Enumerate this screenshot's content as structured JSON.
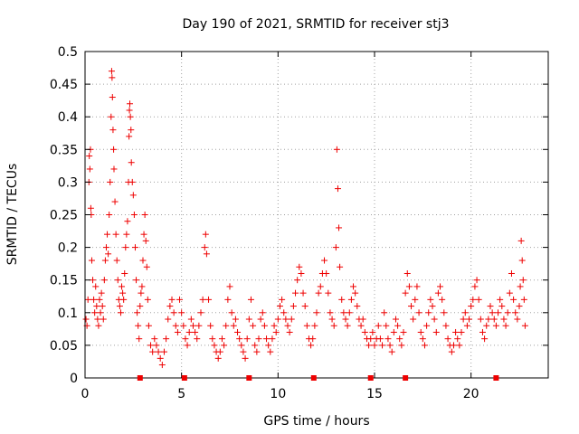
{
  "chart_data": {
    "type": "scatter",
    "title": "Day 190 of 2021, SRMTID for receiver stj3",
    "xlabel": "GPS time / hours",
    "ylabel": "SRMTID / TECUs",
    "xlim": [
      0,
      24
    ],
    "ylim": [
      0,
      0.5
    ],
    "xticks": [
      0,
      5,
      10,
      15,
      20
    ],
    "yticks": [
      0,
      0.05,
      0.1,
      0.15,
      0.2,
      0.25,
      0.3,
      0.35,
      0.4,
      0.45,
      0.5
    ],
    "grid": true,
    "marker": "+",
    "color": "#ee0000",
    "series": [
      {
        "name": "SRMTID",
        "points": [
          [
            0.05,
            0.09
          ],
          [
            0.1,
            0.08
          ],
          [
            0.15,
            0.12
          ],
          [
            0.2,
            0.3
          ],
          [
            0.22,
            0.34
          ],
          [
            0.25,
            0.32
          ],
          [
            0.28,
            0.35
          ],
          [
            0.3,
            0.26
          ],
          [
            0.32,
            0.25
          ],
          [
            0.35,
            0.18
          ],
          [
            0.4,
            0.15
          ],
          [
            0.45,
            0.12
          ],
          [
            0.5,
            0.1
          ],
          [
            0.55,
            0.14
          ],
          [
            0.6,
            0.11
          ],
          [
            0.65,
            0.09
          ],
          [
            0.7,
            0.08
          ],
          [
            0.75,
            0.12
          ],
          [
            0.8,
            0.1
          ],
          [
            0.85,
            0.13
          ],
          [
            0.9,
            0.11
          ],
          [
            0.95,
            0.09
          ],
          [
            1.0,
            0.15
          ],
          [
            1.05,
            0.18
          ],
          [
            1.1,
            0.2
          ],
          [
            1.15,
            0.22
          ],
          [
            1.2,
            0.19
          ],
          [
            1.25,
            0.25
          ],
          [
            1.3,
            0.3
          ],
          [
            1.35,
            0.4
          ],
          [
            1.38,
            0.47
          ],
          [
            1.4,
            0.46
          ],
          [
            1.42,
            0.43
          ],
          [
            1.45,
            0.38
          ],
          [
            1.48,
            0.35
          ],
          [
            1.5,
            0.32
          ],
          [
            1.55,
            0.27
          ],
          [
            1.6,
            0.22
          ],
          [
            1.65,
            0.18
          ],
          [
            1.7,
            0.15
          ],
          [
            1.75,
            0.12
          ],
          [
            1.8,
            0.11
          ],
          [
            1.85,
            0.1
          ],
          [
            1.9,
            0.14
          ],
          [
            1.95,
            0.13
          ],
          [
            2.0,
            0.12
          ],
          [
            2.05,
            0.16
          ],
          [
            2.1,
            0.2
          ],
          [
            2.15,
            0.22
          ],
          [
            2.2,
            0.24
          ],
          [
            2.25,
            0.3
          ],
          [
            2.28,
            0.37
          ],
          [
            2.3,
            0.41
          ],
          [
            2.32,
            0.42
          ],
          [
            2.35,
            0.4
          ],
          [
            2.38,
            0.38
          ],
          [
            2.4,
            0.33
          ],
          [
            2.45,
            0.3
          ],
          [
            2.5,
            0.28
          ],
          [
            2.55,
            0.25
          ],
          [
            2.6,
            0.2
          ],
          [
            2.65,
            0.15
          ],
          [
            2.7,
            0.1
          ],
          [
            2.75,
            0.08
          ],
          [
            2.8,
            0.06
          ],
          [
            2.85,
            0.11
          ],
          [
            2.9,
            0.13
          ],
          [
            2.95,
            0.14
          ],
          [
            3.0,
            0.18
          ],
          [
            3.05,
            0.22
          ],
          [
            3.1,
            0.25
          ],
          [
            3.15,
            0.21
          ],
          [
            3.2,
            0.17
          ],
          [
            3.25,
            0.12
          ],
          [
            3.3,
            0.08
          ],
          [
            3.4,
            0.05
          ],
          [
            3.5,
            0.04
          ],
          [
            3.6,
            0.06
          ],
          [
            3.7,
            0.05
          ],
          [
            3.8,
            0.04
          ],
          [
            3.9,
            0.03
          ],
          [
            4.0,
            0.02
          ],
          [
            4.1,
            0.04
          ],
          [
            4.2,
            0.06
          ],
          [
            4.3,
            0.09
          ],
          [
            4.4,
            0.11
          ],
          [
            4.5,
            0.12
          ],
          [
            4.6,
            0.1
          ],
          [
            4.7,
            0.08
          ],
          [
            4.8,
            0.07
          ],
          [
            4.9,
            0.12
          ],
          [
            5.0,
            0.1
          ],
          [
            5.1,
            0.08
          ],
          [
            5.2,
            0.06
          ],
          [
            5.3,
            0.05
          ],
          [
            5.4,
            0.07
          ],
          [
            5.5,
            0.09
          ],
          [
            5.6,
            0.08
          ],
          [
            5.7,
            0.07
          ],
          [
            5.8,
            0.06
          ],
          [
            5.9,
            0.08
          ],
          [
            6.0,
            0.1
          ],
          [
            6.1,
            0.12
          ],
          [
            6.2,
            0.2
          ],
          [
            6.25,
            0.22
          ],
          [
            6.3,
            0.19
          ],
          [
            6.4,
            0.12
          ],
          [
            6.5,
            0.08
          ],
          [
            6.6,
            0.06
          ],
          [
            6.7,
            0.05
          ],
          [
            6.8,
            0.04
          ],
          [
            6.9,
            0.03
          ],
          [
            7.0,
            0.04
          ],
          [
            7.1,
            0.06
          ],
          [
            7.2,
            0.05
          ],
          [
            7.3,
            0.08
          ],
          [
            7.4,
            0.12
          ],
          [
            7.5,
            0.14
          ],
          [
            7.6,
            0.1
          ],
          [
            7.7,
            0.08
          ],
          [
            7.8,
            0.09
          ],
          [
            7.9,
            0.07
          ],
          [
            8.0,
            0.06
          ],
          [
            8.1,
            0.05
          ],
          [
            8.2,
            0.04
          ],
          [
            8.3,
            0.03
          ],
          [
            8.4,
            0.06
          ],
          [
            8.5,
            0.09
          ],
          [
            8.6,
            0.12
          ],
          [
            8.7,
            0.08
          ],
          [
            8.8,
            0.05
          ],
          [
            8.9,
            0.04
          ],
          [
            9.0,
            0.06
          ],
          [
            9.1,
            0.09
          ],
          [
            9.2,
            0.1
          ],
          [
            9.3,
            0.08
          ],
          [
            9.4,
            0.06
          ],
          [
            9.5,
            0.05
          ],
          [
            9.6,
            0.04
          ],
          [
            9.7,
            0.06
          ],
          [
            9.8,
            0.08
          ],
          [
            9.9,
            0.07
          ],
          [
            10.0,
            0.09
          ],
          [
            10.1,
            0.11
          ],
          [
            10.2,
            0.12
          ],
          [
            10.3,
            0.1
          ],
          [
            10.4,
            0.09
          ],
          [
            10.5,
            0.08
          ],
          [
            10.6,
            0.07
          ],
          [
            10.7,
            0.09
          ],
          [
            10.8,
            0.11
          ],
          [
            10.9,
            0.13
          ],
          [
            11.0,
            0.15
          ],
          [
            11.1,
            0.17
          ],
          [
            11.2,
            0.16
          ],
          [
            11.3,
            0.13
          ],
          [
            11.4,
            0.11
          ],
          [
            11.5,
            0.08
          ],
          [
            11.6,
            0.06
          ],
          [
            11.7,
            0.05
          ],
          [
            11.8,
            0.06
          ],
          [
            11.9,
            0.08
          ],
          [
            12.0,
            0.1
          ],
          [
            12.1,
            0.13
          ],
          [
            12.2,
            0.14
          ],
          [
            12.3,
            0.16
          ],
          [
            12.4,
            0.18
          ],
          [
            12.5,
            0.16
          ],
          [
            12.6,
            0.13
          ],
          [
            12.7,
            0.1
          ],
          [
            12.8,
            0.09
          ],
          [
            12.9,
            0.08
          ],
          [
            13.0,
            0.2
          ],
          [
            13.05,
            0.35
          ],
          [
            13.1,
            0.29
          ],
          [
            13.15,
            0.23
          ],
          [
            13.2,
            0.17
          ],
          [
            13.3,
            0.12
          ],
          [
            13.4,
            0.1
          ],
          [
            13.5,
            0.09
          ],
          [
            13.6,
            0.08
          ],
          [
            13.7,
            0.1
          ],
          [
            13.8,
            0.12
          ],
          [
            13.9,
            0.14
          ],
          [
            14.0,
            0.13
          ],
          [
            14.1,
            0.11
          ],
          [
            14.2,
            0.09
          ],
          [
            14.3,
            0.08
          ],
          [
            14.4,
            0.09
          ],
          [
            14.5,
            0.07
          ],
          [
            14.6,
            0.06
          ],
          [
            14.7,
            0.05
          ],
          [
            14.8,
            0.06
          ],
          [
            14.9,
            0.07
          ],
          [
            15.0,
            0.05
          ],
          [
            15.1,
            0.06
          ],
          [
            15.2,
            0.08
          ],
          [
            15.3,
            0.06
          ],
          [
            15.4,
            0.05
          ],
          [
            15.5,
            0.1
          ],
          [
            15.6,
            0.08
          ],
          [
            15.7,
            0.06
          ],
          [
            15.8,
            0.05
          ],
          [
            15.9,
            0.04
          ],
          [
            16.0,
            0.07
          ],
          [
            16.1,
            0.09
          ],
          [
            16.2,
            0.08
          ],
          [
            16.3,
            0.06
          ],
          [
            16.4,
            0.05
          ],
          [
            16.5,
            0.07
          ],
          [
            16.6,
            0.13
          ],
          [
            16.7,
            0.16
          ],
          [
            16.8,
            0.14
          ],
          [
            16.9,
            0.11
          ],
          [
            17.0,
            0.09
          ],
          [
            17.1,
            0.12
          ],
          [
            17.2,
            0.14
          ],
          [
            17.3,
            0.1
          ],
          [
            17.4,
            0.07
          ],
          [
            17.5,
            0.06
          ],
          [
            17.6,
            0.05
          ],
          [
            17.7,
            0.08
          ],
          [
            17.8,
            0.1
          ],
          [
            17.9,
            0.12
          ],
          [
            18.0,
            0.11
          ],
          [
            18.1,
            0.09
          ],
          [
            18.2,
            0.07
          ],
          [
            18.3,
            0.13
          ],
          [
            18.4,
            0.14
          ],
          [
            18.5,
            0.12
          ],
          [
            18.6,
            0.1
          ],
          [
            18.7,
            0.08
          ],
          [
            18.8,
            0.06
          ],
          [
            18.9,
            0.05
          ],
          [
            19.0,
            0.04
          ],
          [
            19.1,
            0.05
          ],
          [
            19.2,
            0.07
          ],
          [
            19.3,
            0.06
          ],
          [
            19.4,
            0.05
          ],
          [
            19.5,
            0.07
          ],
          [
            19.6,
            0.09
          ],
          [
            19.7,
            0.1
          ],
          [
            19.8,
            0.08
          ],
          [
            19.9,
            0.09
          ],
          [
            20.0,
            0.11
          ],
          [
            20.1,
            0.12
          ],
          [
            20.2,
            0.14
          ],
          [
            20.3,
            0.15
          ],
          [
            20.4,
            0.12
          ],
          [
            20.5,
            0.09
          ],
          [
            20.6,
            0.07
          ],
          [
            20.7,
            0.06
          ],
          [
            20.8,
            0.08
          ],
          [
            20.9,
            0.09
          ],
          [
            21.0,
            0.11
          ],
          [
            21.1,
            0.1
          ],
          [
            21.2,
            0.09
          ],
          [
            21.3,
            0.08
          ],
          [
            21.4,
            0.1
          ],
          [
            21.5,
            0.12
          ],
          [
            21.6,
            0.11
          ],
          [
            21.7,
            0.09
          ],
          [
            21.8,
            0.08
          ],
          [
            21.9,
            0.1
          ],
          [
            22.0,
            0.13
          ],
          [
            22.1,
            0.16
          ],
          [
            22.2,
            0.12
          ],
          [
            22.3,
            0.1
          ],
          [
            22.4,
            0.09
          ],
          [
            22.5,
            0.11
          ],
          [
            22.55,
            0.14
          ],
          [
            22.6,
            0.21
          ],
          [
            22.65,
            0.18
          ],
          [
            22.7,
            0.15
          ],
          [
            22.75,
            0.12
          ],
          [
            22.8,
            0.08
          ]
        ]
      }
    ],
    "x_markers": [
      2.85,
      5.15,
      8.5,
      11.85,
      14.8,
      16.6,
      21.3
    ]
  }
}
